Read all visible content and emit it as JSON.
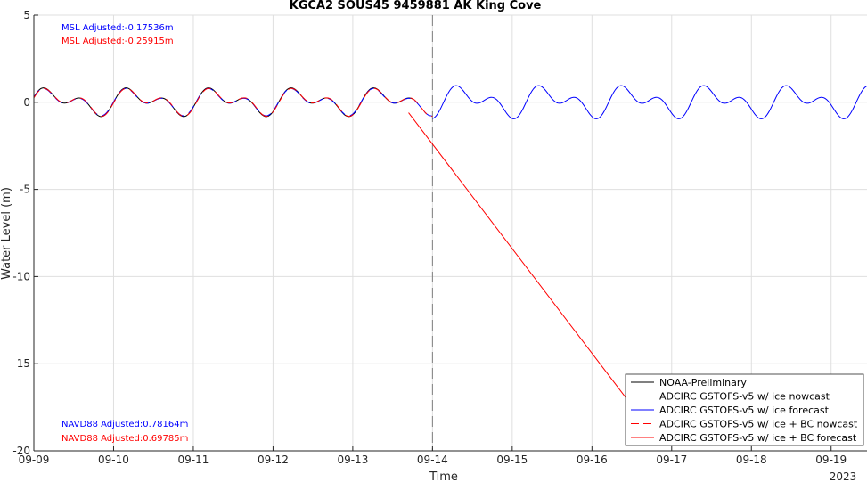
{
  "chart_data": {
    "type": "line",
    "title": "KGCA2 SOUS45 9459881 AK King Cove",
    "xlabel": "Time",
    "ylabel": "Water Level (m)",
    "ylim": [
      -20,
      5
    ],
    "xlim_days": [
      0,
      10.45
    ],
    "year_label": "2023",
    "y_ticks": [
      5,
      0,
      -5,
      -10,
      -15,
      -20
    ],
    "x_ticks": [
      {
        "day": 0,
        "label": "09-09"
      },
      {
        "day": 1,
        "label": "09-10"
      },
      {
        "day": 2,
        "label": "09-11"
      },
      {
        "day": 3,
        "label": "09-12"
      },
      {
        "day": 4,
        "label": "09-13"
      },
      {
        "day": 5,
        "label": "09-14"
      },
      {
        "day": 6,
        "label": "09-15"
      },
      {
        "day": 7,
        "label": "09-16"
      },
      {
        "day": 8,
        "label": "09-17"
      },
      {
        "day": 9,
        "label": "09-18"
      },
      {
        "day": 10,
        "label": "09-19"
      }
    ],
    "nowcast_divider_day": 5,
    "series": [
      {
        "name": "NOAA-Preliminary",
        "color": "#000000",
        "style": "solid",
        "x_range": [
          0,
          4.75
        ],
        "peak": 0.78,
        "trough": -0.95
      },
      {
        "name": "ADCIRC GSTOFS-v5 w/ ice nowcast",
        "color": "#0000ff",
        "style": "dashed",
        "x_range": [
          0,
          5
        ],
        "peak": 0.72,
        "trough": -0.88
      },
      {
        "name": "ADCIRC GSTOFS-v5 w/ ice forecast",
        "color": "#0000ff",
        "style": "solid",
        "x_range": [
          5,
          10.45
        ],
        "peak": 1.0,
        "trough": -1.0
      },
      {
        "name": "ADCIRC GSTOFS-v5 w/ ice + BC nowcast",
        "color": "#ff0000",
        "style": "dashed",
        "x_range": [
          0,
          5
        ],
        "peak": 0.7,
        "trough": -0.92
      },
      {
        "name": "ADCIRC GSTOFS-v5 w/ ice + BC forecast",
        "color": "#ff0000",
        "style": "solid",
        "x": [
          4.7,
          7.2,
          7.55
        ],
        "y": [
          -0.6,
          -15.6,
          -17.7
        ]
      }
    ],
    "annotations": {
      "msl_blue": "MSL Adjusted:-0.17536m",
      "msl_red": "MSL Adjusted:-0.25915m",
      "navd_blue": "NAVD88 Adjusted:0.78164m",
      "navd_red": "NAVD88 Adjusted:0.69785m"
    }
  },
  "colors": {
    "blue": "#0000ff",
    "red": "#ff0000",
    "black": "#000000",
    "grid": "#dfdfdf"
  }
}
